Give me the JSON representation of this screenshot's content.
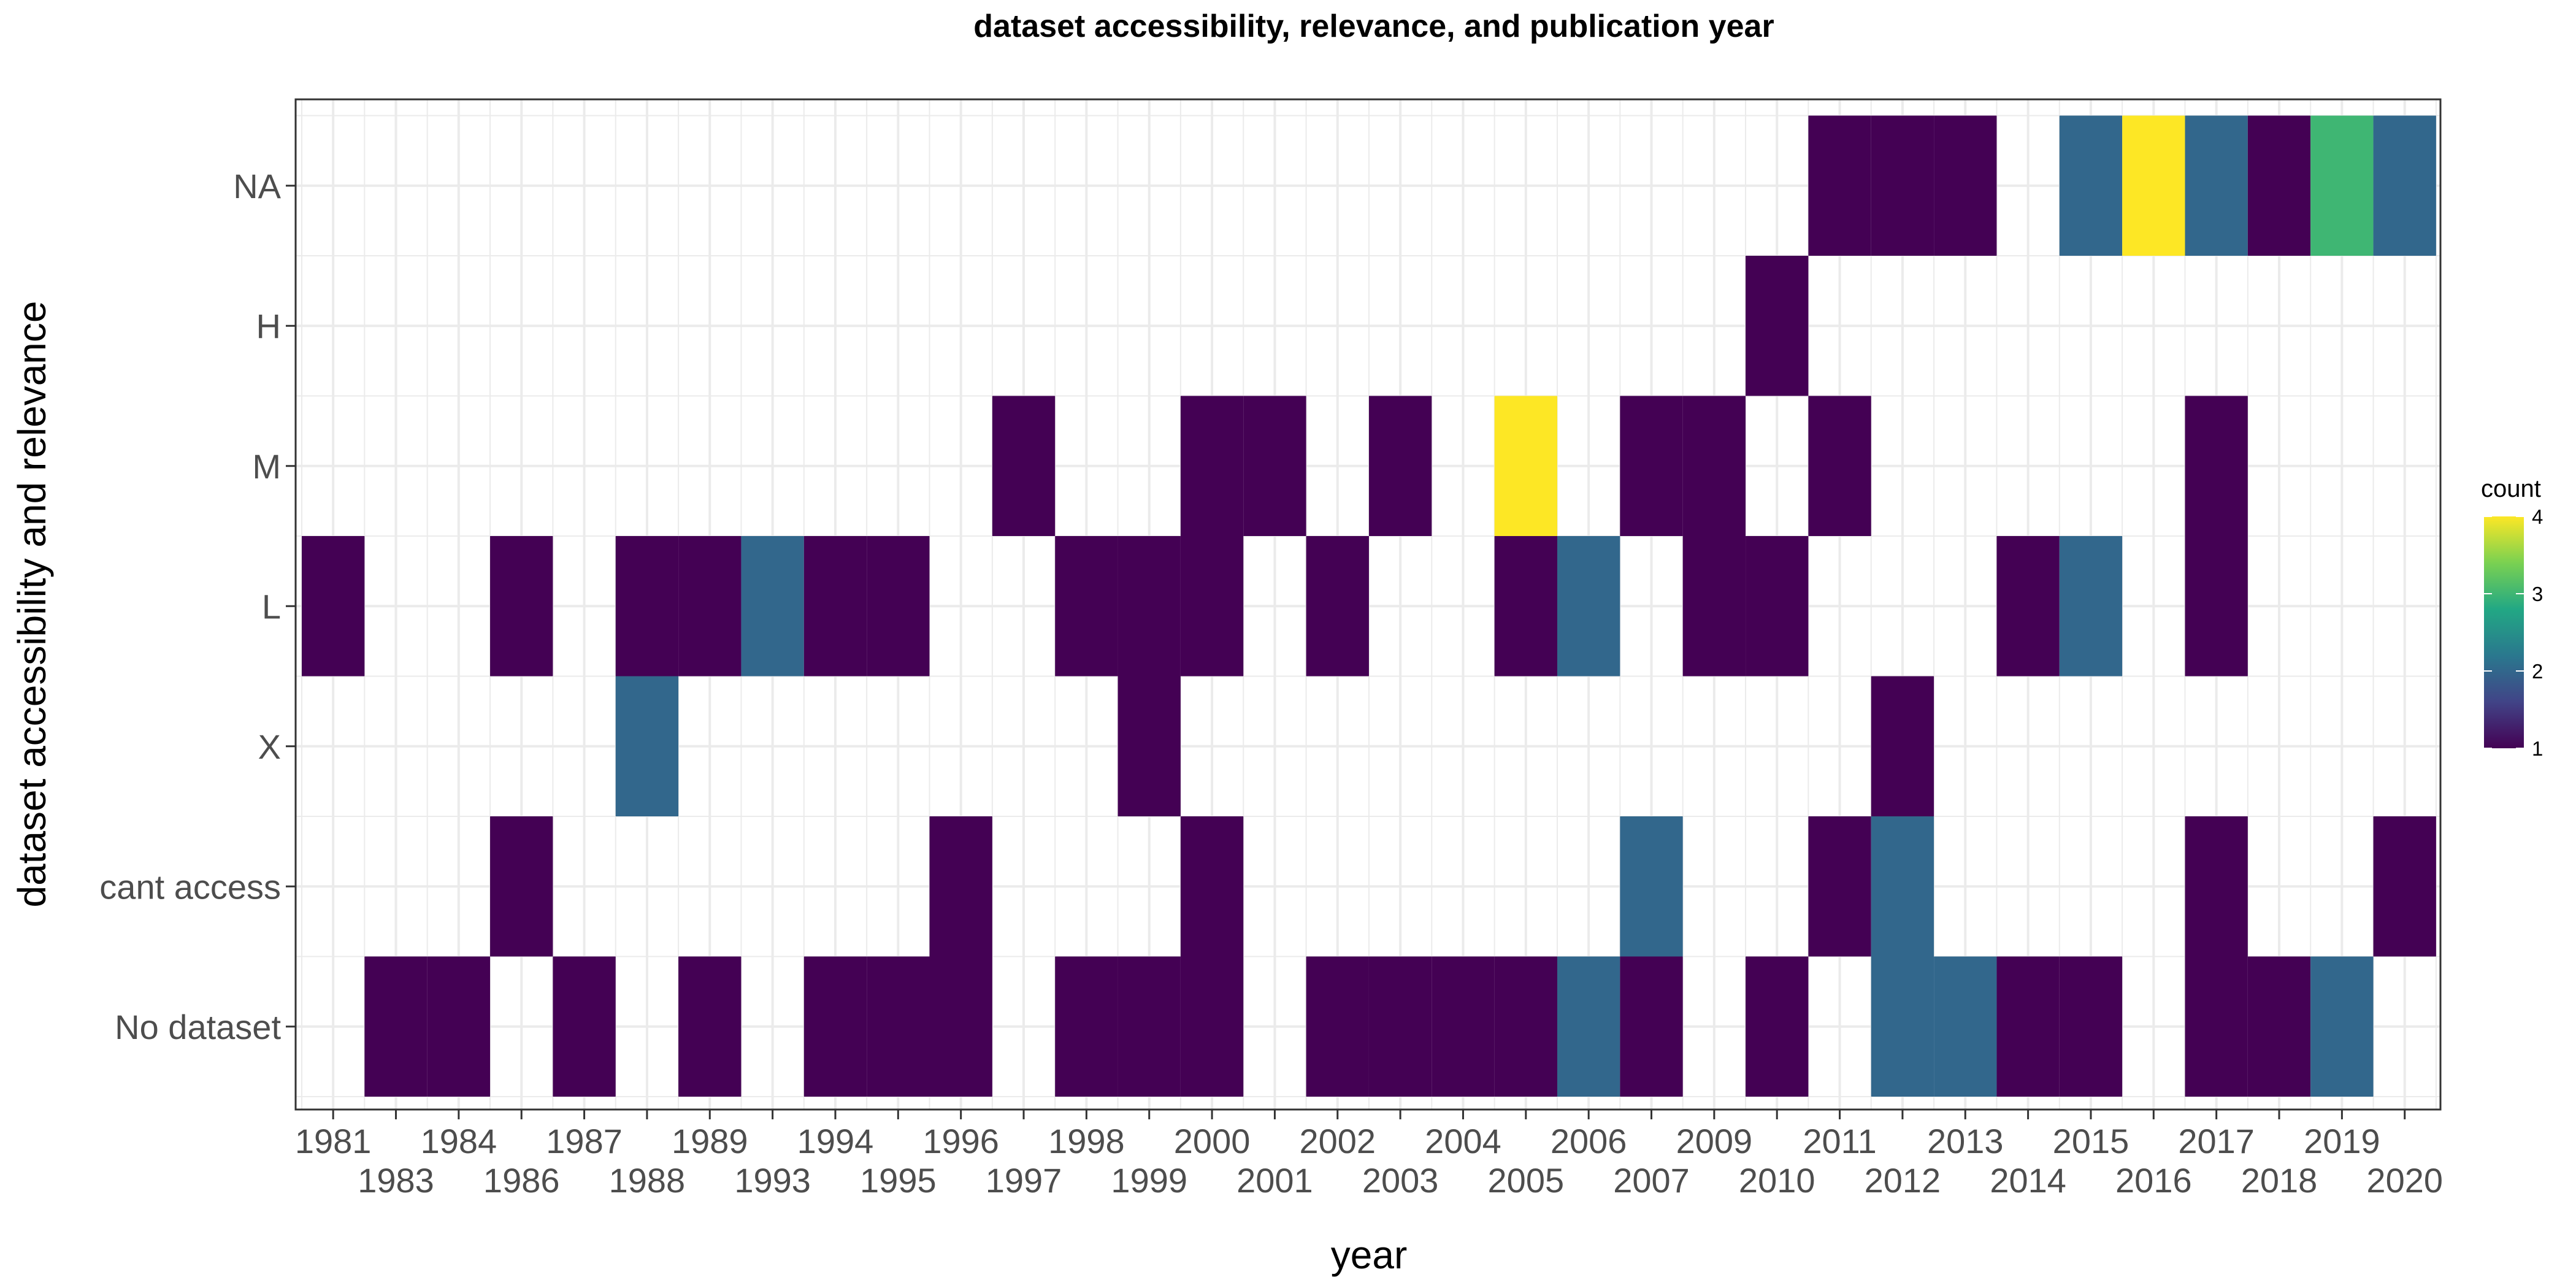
{
  "chart_data": {
    "type": "heatmap",
    "title": "dataset accessibility, relevance, and publication year",
    "xlabel": "year",
    "ylabel": "dataset accessibility and relevance",
    "x_categories": [
      "1981",
      "1983",
      "1984",
      "1986",
      "1987",
      "1988",
      "1989",
      "1993",
      "1994",
      "1995",
      "1996",
      "1997",
      "1998",
      "1999",
      "2000",
      "2001",
      "2002",
      "2003",
      "2004",
      "2005",
      "2006",
      "2007",
      "2009",
      "2010",
      "2011",
      "2012",
      "2013",
      "2014",
      "2015",
      "2016",
      "2017",
      "2018",
      "2019",
      "2020"
    ],
    "y_categories": [
      "No dataset",
      "cant access",
      "X",
      "L",
      "M",
      "H",
      "NA"
    ],
    "cells": [
      {
        "year": "1983",
        "group": "No dataset",
        "count": 1
      },
      {
        "year": "1984",
        "group": "No dataset",
        "count": 1
      },
      {
        "year": "1987",
        "group": "No dataset",
        "count": 1
      },
      {
        "year": "1989",
        "group": "No dataset",
        "count": 1
      },
      {
        "year": "1994",
        "group": "No dataset",
        "count": 1
      },
      {
        "year": "1995",
        "group": "No dataset",
        "count": 1
      },
      {
        "year": "1996",
        "group": "No dataset",
        "count": 1
      },
      {
        "year": "1998",
        "group": "No dataset",
        "count": 1
      },
      {
        "year": "1999",
        "group": "No dataset",
        "count": 1
      },
      {
        "year": "2000",
        "group": "No dataset",
        "count": 1
      },
      {
        "year": "2002",
        "group": "No dataset",
        "count": 1
      },
      {
        "year": "2003",
        "group": "No dataset",
        "count": 1
      },
      {
        "year": "2004",
        "group": "No dataset",
        "count": 1
      },
      {
        "year": "2005",
        "group": "No dataset",
        "count": 1
      },
      {
        "year": "2006",
        "group": "No dataset",
        "count": 2
      },
      {
        "year": "2007",
        "group": "No dataset",
        "count": 1
      },
      {
        "year": "2010",
        "group": "No dataset",
        "count": 1
      },
      {
        "year": "2012",
        "group": "No dataset",
        "count": 2
      },
      {
        "year": "2013",
        "group": "No dataset",
        "count": 2
      },
      {
        "year": "2014",
        "group": "No dataset",
        "count": 1
      },
      {
        "year": "2015",
        "group": "No dataset",
        "count": 1
      },
      {
        "year": "2017",
        "group": "No dataset",
        "count": 1
      },
      {
        "year": "2018",
        "group": "No dataset",
        "count": 1
      },
      {
        "year": "2019",
        "group": "No dataset",
        "count": 2
      },
      {
        "year": "1986",
        "group": "cant access",
        "count": 1
      },
      {
        "year": "1996",
        "group": "cant access",
        "count": 1
      },
      {
        "year": "2000",
        "group": "cant access",
        "count": 1
      },
      {
        "year": "2007",
        "group": "cant access",
        "count": 2
      },
      {
        "year": "2011",
        "group": "cant access",
        "count": 1
      },
      {
        "year": "2012",
        "group": "cant access",
        "count": 2
      },
      {
        "year": "2017",
        "group": "cant access",
        "count": 1
      },
      {
        "year": "2020",
        "group": "cant access",
        "count": 1
      },
      {
        "year": "1988",
        "group": "X",
        "count": 2
      },
      {
        "year": "1999",
        "group": "X",
        "count": 1
      },
      {
        "year": "2012",
        "group": "X",
        "count": 1
      },
      {
        "year": "1981",
        "group": "L",
        "count": 1
      },
      {
        "year": "1986",
        "group": "L",
        "count": 1
      },
      {
        "year": "1988",
        "group": "L",
        "count": 1
      },
      {
        "year": "1989",
        "group": "L",
        "count": 1
      },
      {
        "year": "1993",
        "group": "L",
        "count": 2
      },
      {
        "year": "1994",
        "group": "L",
        "count": 1
      },
      {
        "year": "1995",
        "group": "L",
        "count": 1
      },
      {
        "year": "1998",
        "group": "L",
        "count": 1
      },
      {
        "year": "1999",
        "group": "L",
        "count": 1
      },
      {
        "year": "2000",
        "group": "L",
        "count": 1
      },
      {
        "year": "2002",
        "group": "L",
        "count": 1
      },
      {
        "year": "2005",
        "group": "L",
        "count": 1
      },
      {
        "year": "2006",
        "group": "L",
        "count": 2
      },
      {
        "year": "2009",
        "group": "L",
        "count": 1
      },
      {
        "year": "2010",
        "group": "L",
        "count": 1
      },
      {
        "year": "2014",
        "group": "L",
        "count": 1
      },
      {
        "year": "2015",
        "group": "L",
        "count": 2
      },
      {
        "year": "2017",
        "group": "L",
        "count": 1
      },
      {
        "year": "1997",
        "group": "M",
        "count": 1
      },
      {
        "year": "2000",
        "group": "M",
        "count": 1
      },
      {
        "year": "2001",
        "group": "M",
        "count": 1
      },
      {
        "year": "2003",
        "group": "M",
        "count": 1
      },
      {
        "year": "2005",
        "group": "M",
        "count": 4
      },
      {
        "year": "2007",
        "group": "M",
        "count": 1
      },
      {
        "year": "2009",
        "group": "M",
        "count": 1
      },
      {
        "year": "2011",
        "group": "M",
        "count": 1
      },
      {
        "year": "2017",
        "group": "M",
        "count": 1
      },
      {
        "year": "2010",
        "group": "H",
        "count": 1
      },
      {
        "year": "2011",
        "group": "NA",
        "count": 1
      },
      {
        "year": "2012",
        "group": "NA",
        "count": 1
      },
      {
        "year": "2013",
        "group": "NA",
        "count": 1
      },
      {
        "year": "2015",
        "group": "NA",
        "count": 2
      },
      {
        "year": "2016",
        "group": "NA",
        "count": 4
      },
      {
        "year": "2017",
        "group": "NA",
        "count": 2
      },
      {
        "year": "2018",
        "group": "NA",
        "count": 1
      },
      {
        "year": "2019",
        "group": "NA",
        "count": 3
      },
      {
        "year": "2020",
        "group": "NA",
        "count": 2
      }
    ],
    "legend": {
      "title": "count",
      "ticks": [
        "1",
        "2",
        "3",
        "4"
      ],
      "range": [
        1,
        4
      ],
      "placement": "right",
      "palette": [
        "#440154",
        "#414487",
        "#2A788E",
        "#22A884",
        "#7AD151",
        "#FDE725"
      ]
    },
    "grid": true
  }
}
